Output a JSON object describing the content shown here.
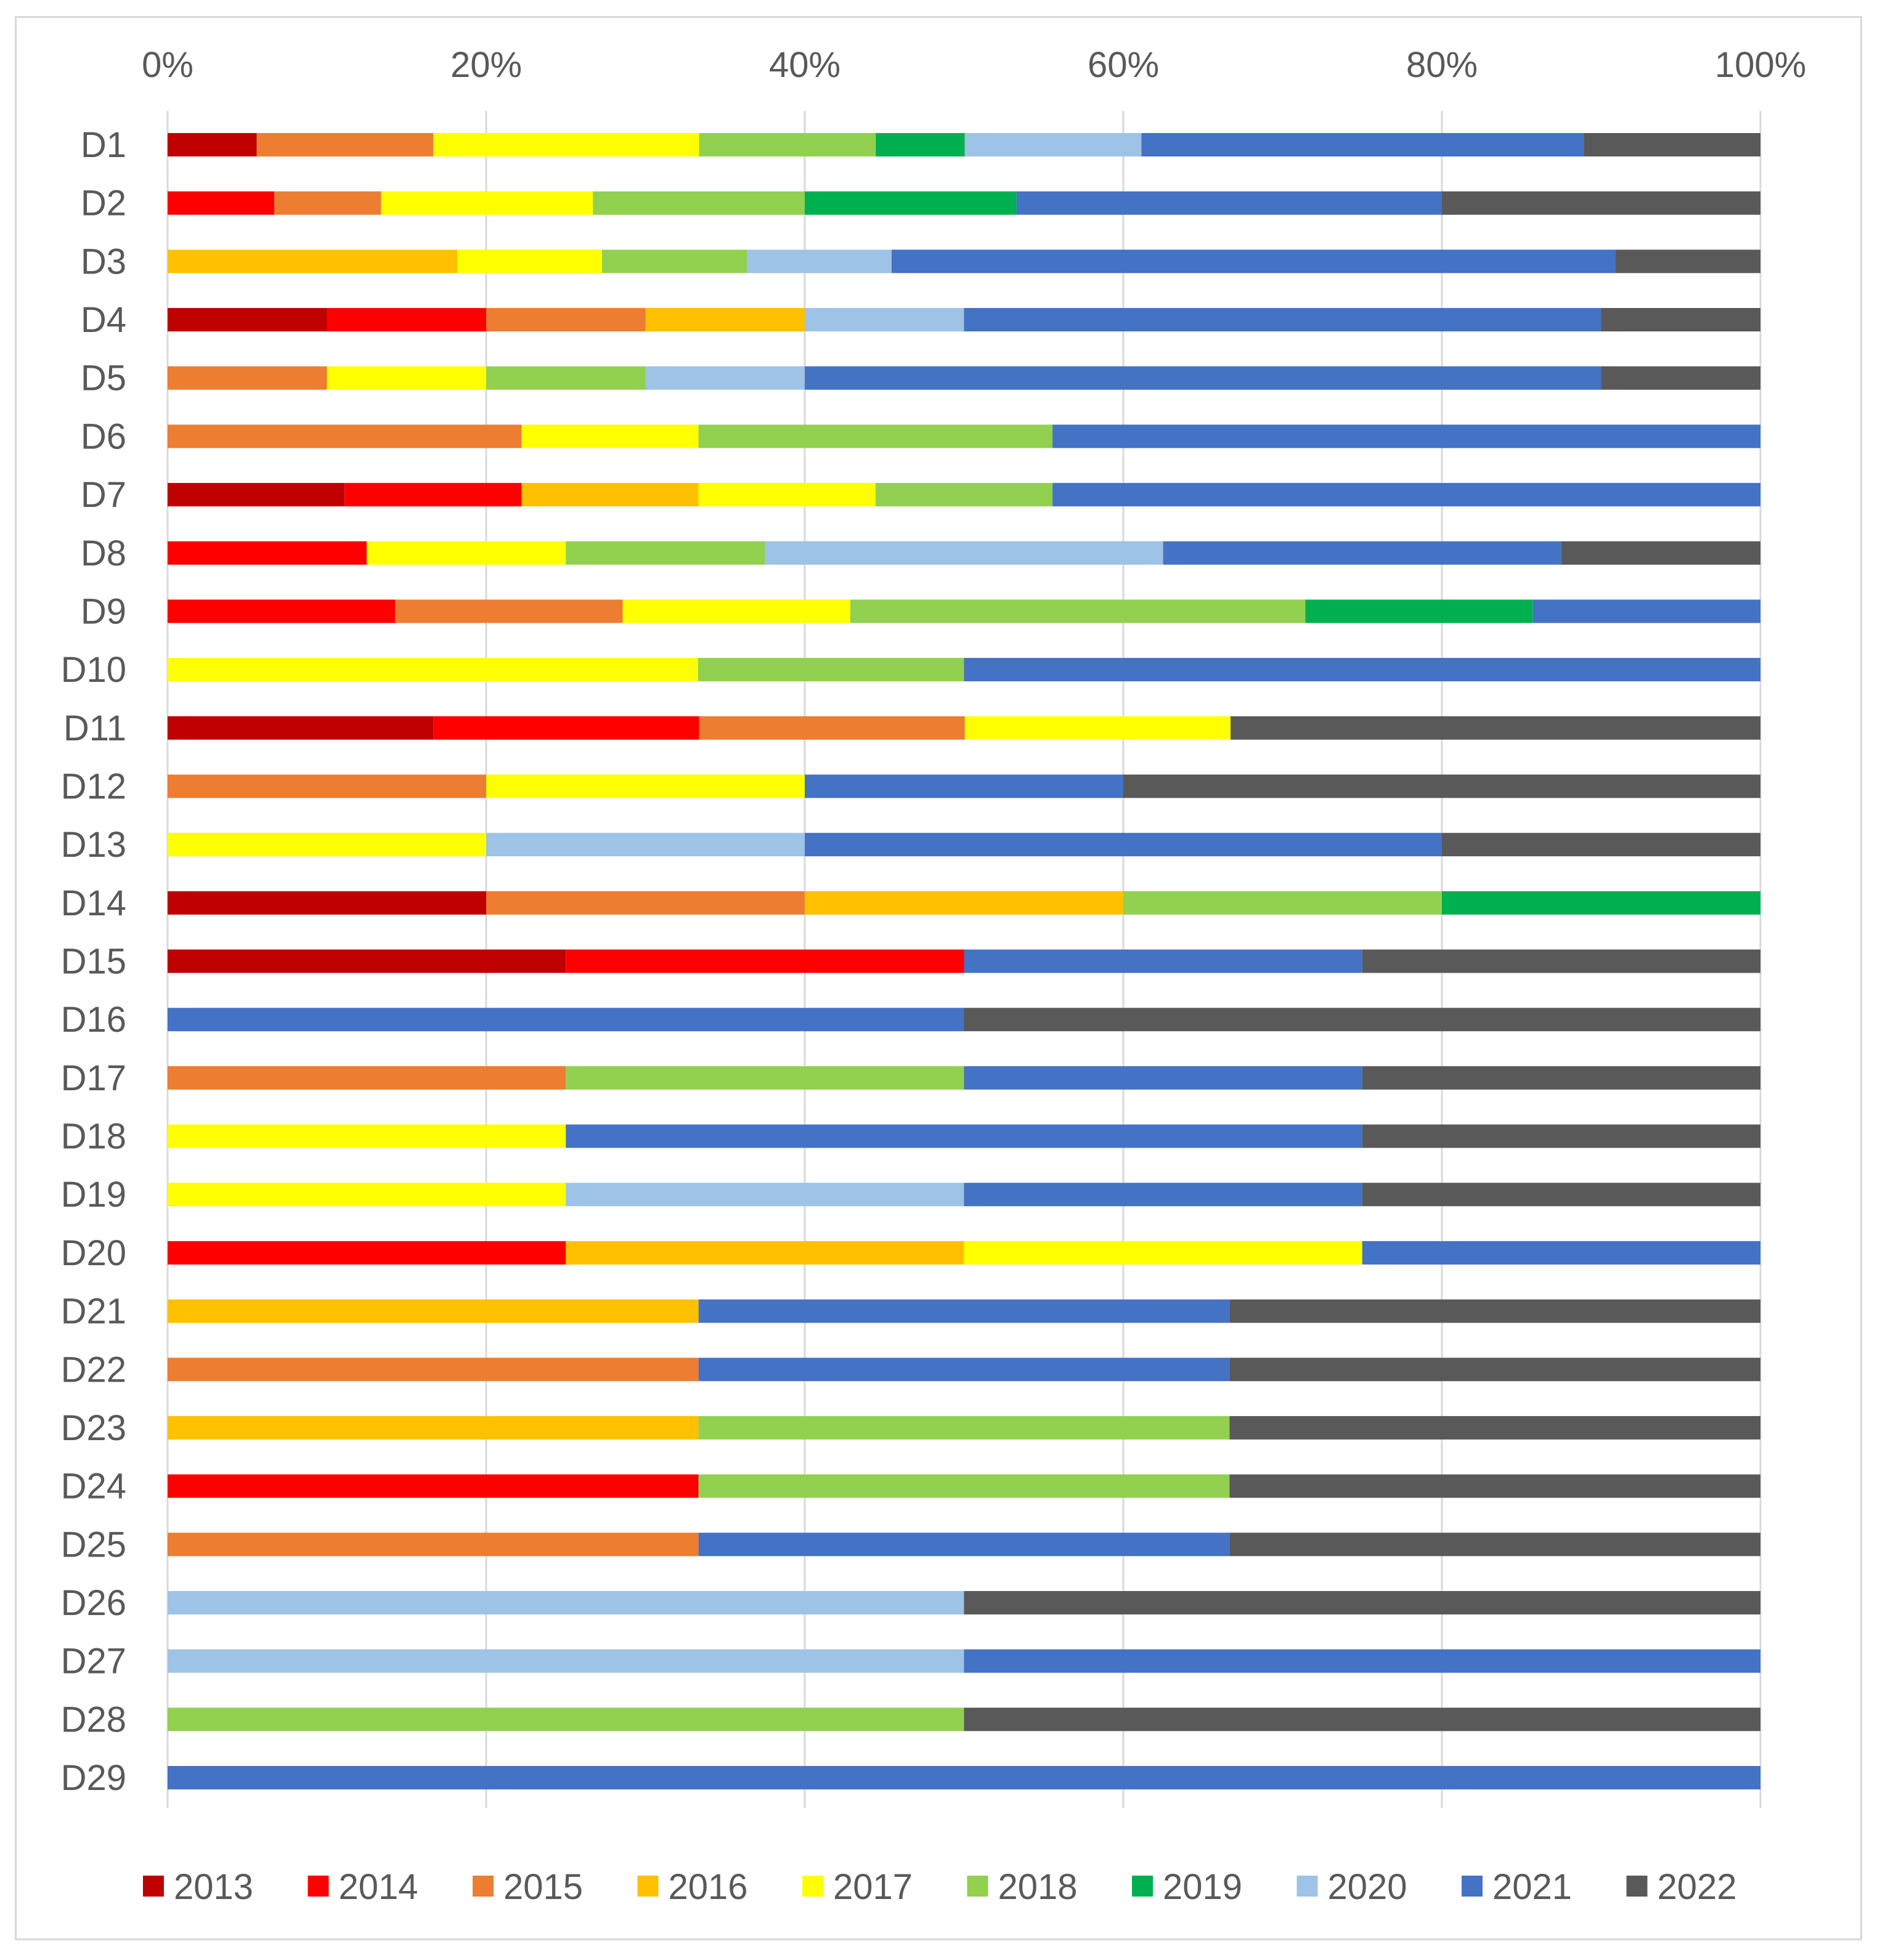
{
  "chart_data": {
    "type": "bar",
    "orientation": "horizontal",
    "stacked": "percent",
    "title": "",
    "xlabel": "",
    "ylabel": "",
    "x_ticks": [
      "0%",
      "20%",
      "40%",
      "60%",
      "80%",
      "100%"
    ],
    "xlim": [
      0,
      100
    ],
    "x_axis_position": "top",
    "grid": "vertical",
    "legend_position": "bottom",
    "categories": [
      "D1",
      "D2",
      "D3",
      "D4",
      "D5",
      "D6",
      "D7",
      "D8",
      "D9",
      "D10",
      "D11",
      "D12",
      "D13",
      "D14",
      "D15",
      "D16",
      "D17",
      "D18",
      "D19",
      "D20",
      "D21",
      "D22",
      "D23",
      "D24",
      "D25",
      "D26",
      "D27",
      "D28",
      "D29"
    ],
    "series": [
      {
        "name": "2013",
        "color": "#c00000",
        "values": [
          5.6,
          0,
          0,
          10,
          0,
          0,
          11.1,
          0,
          0,
          0,
          16.7,
          0,
          0,
          20,
          25,
          0,
          0,
          0,
          0,
          0,
          0,
          0,
          0,
          0,
          0,
          0,
          0,
          0,
          0
        ]
      },
      {
        "name": "2014",
        "color": "#ff0000",
        "values": [
          0,
          6.7,
          0,
          10,
          0,
          0,
          11.1,
          12.5,
          14.3,
          0,
          16.7,
          0,
          0,
          0,
          25,
          0,
          0,
          0,
          0,
          25,
          0,
          0,
          0,
          33.3,
          0,
          0,
          0,
          0,
          0
        ]
      },
      {
        "name": "2015",
        "color": "#ed7d31",
        "values": [
          11.1,
          6.7,
          0,
          10,
          10,
          22.2,
          0,
          0,
          14.3,
          0,
          16.7,
          20,
          0,
          20,
          0,
          0,
          25,
          0,
          0,
          0,
          0,
          33.3,
          0,
          0,
          33.3,
          0,
          0,
          0,
          0
        ]
      },
      {
        "name": "2016",
        "color": "#ffc000",
        "values": [
          0,
          0,
          18.2,
          10,
          0,
          0,
          11.1,
          0,
          0,
          0,
          0,
          0,
          0,
          20,
          0,
          0,
          0,
          0,
          0,
          25,
          33.3,
          0,
          33.3,
          0,
          0,
          0,
          0,
          0,
          0
        ]
      },
      {
        "name": "2017",
        "color": "#ffff00",
        "values": [
          16.7,
          13.3,
          9.1,
          0,
          10,
          11.1,
          11.1,
          12.5,
          14.3,
          33.3,
          16.7,
          20,
          20,
          0,
          0,
          0,
          0,
          25,
          25,
          25,
          0,
          0,
          0,
          0,
          0,
          0,
          0,
          0,
          0
        ]
      },
      {
        "name": "2018",
        "color": "#92d050",
        "values": [
          11.1,
          13.3,
          9.1,
          0,
          10,
          22.2,
          11.1,
          12.5,
          28.6,
          16.7,
          0,
          0,
          0,
          20,
          0,
          0,
          25,
          0,
          0,
          0,
          0,
          0,
          33.3,
          33.3,
          0,
          0,
          0,
          50,
          0
        ]
      },
      {
        "name": "2019",
        "color": "#00b050",
        "values": [
          5.6,
          13.3,
          0,
          0,
          0,
          0,
          0,
          0,
          14.3,
          0,
          0,
          0,
          0,
          20,
          0,
          0,
          0,
          0,
          0,
          0,
          0,
          0,
          0,
          0,
          0,
          0,
          0,
          0,
          0
        ]
      },
      {
        "name": "2020",
        "color": "#9dc3e6",
        "values": [
          11.1,
          0,
          9.1,
          10,
          10,
          0,
          0,
          25,
          0,
          0,
          0,
          0,
          20,
          0,
          0,
          0,
          0,
          0,
          25,
          0,
          0,
          0,
          0,
          0,
          0,
          50,
          50,
          0,
          0
        ]
      },
      {
        "name": "2021",
        "color": "#4472c4",
        "values": [
          27.8,
          26.7,
          45.5,
          40,
          50,
          44.4,
          44.4,
          25,
          14.3,
          50,
          0,
          20,
          40,
          0,
          25,
          50,
          25,
          50,
          25,
          25,
          33.3,
          33.3,
          0,
          0,
          33.3,
          0,
          50,
          0,
          100
        ]
      },
      {
        "name": "2022",
        "color": "#595959",
        "values": [
          11.1,
          20,
          9.1,
          10,
          10,
          0,
          0,
          12.5,
          0,
          0,
          33.3,
          40,
          20,
          0,
          25,
          50,
          25,
          25,
          25,
          0,
          33.3,
          33.3,
          33.3,
          33.3,
          33.3,
          50,
          0,
          50,
          0
        ]
      }
    ]
  }
}
